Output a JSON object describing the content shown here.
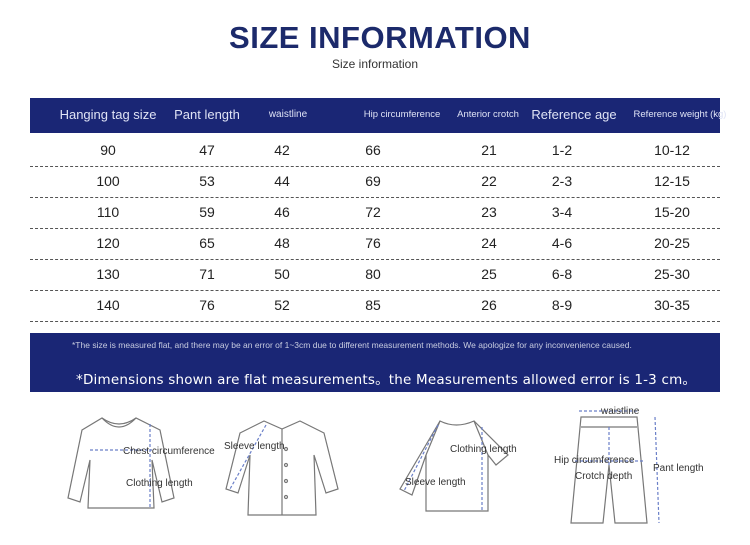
{
  "title": "SIZE INFORMATION",
  "subtitle": "Size information",
  "table": {
    "headers": [
      "Hanging tag size",
      "Pant length",
      "waistline",
      "Hip circumference",
      "Anterior crotch",
      "Reference age",
      "Reference weight (kg)"
    ],
    "rows": [
      [
        "90",
        "47",
        "42",
        "66",
        "21",
        "1-2",
        "10-12"
      ],
      [
        "100",
        "53",
        "44",
        "69",
        "22",
        "2-3",
        "12-15"
      ],
      [
        "110",
        "59",
        "46",
        "72",
        "23",
        "3-4",
        "15-20"
      ],
      [
        "120",
        "65",
        "48",
        "76",
        "24",
        "4-6",
        "20-25"
      ],
      [
        "130",
        "71",
        "50",
        "80",
        "25",
        "6-8",
        "25-30"
      ],
      [
        "140",
        "76",
        "52",
        "85",
        "26",
        "8-9",
        "30-35"
      ]
    ]
  },
  "note": {
    "small": "*The size is measured flat, and there may be an error of 1~3cm due to different measurement methods. We apologize for any inconvenience caused.",
    "main": "*Dimensions shown are flat measurements。the Measurements allowed error is 1-3 cm。"
  },
  "diagrams": {
    "sweater": {
      "chest": "Chest circumference",
      "length": "Clothing length"
    },
    "shirt": {
      "sleeve": "Sleeve length"
    },
    "raglan": {
      "length": "Clothing length",
      "sleeve": "Sleeve length"
    },
    "pants": {
      "waist": "waistline",
      "hip": "Hip circumference",
      "crotch": "Crotch depth",
      "length": "Pant length"
    }
  },
  "colors": {
    "header_bg": "#1a2675",
    "title": "#1c2a6b"
  }
}
